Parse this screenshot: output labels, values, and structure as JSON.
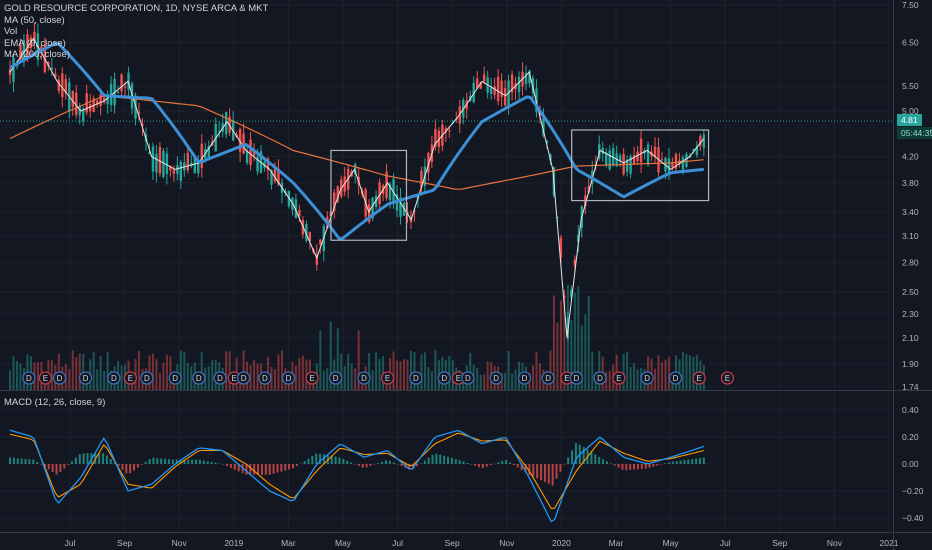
{
  "chart_data": [
    {
      "type": "candlestick",
      "title": "GOLD RESOURCE CORPORATION, 1D, NYSE ARCA & MKT",
      "indicators": [
        "MA (50, close)",
        "Vol",
        "EMA (9, close)",
        "MA (200, close)"
      ],
      "y_ticks": [
        "7.50",
        "6.50",
        "5.50",
        "5.00",
        "4.20",
        "3.80",
        "3.40",
        "3.10",
        "2.80",
        "2.50",
        "2.30",
        "2.10",
        "1.90",
        "1.74"
      ],
      "y_scale": "log",
      "ylim": [
        1.74,
        7.5
      ],
      "last_price": "4.81",
      "countdown": "05:44:35",
      "x_ticks": [
        "Jul",
        "Sep",
        "Nov",
        "2019",
        "Mar",
        "May",
        "Jul",
        "Sep",
        "Nov",
        "2020",
        "Mar",
        "May",
        "Jul",
        "Sep",
        "Nov",
        "2021"
      ],
      "price_path": [
        {
          "t": 0,
          "v": 5.8
        },
        {
          "t": 0.5,
          "v": 6.6
        },
        {
          "t": 1,
          "v": 5.6
        },
        {
          "t": 1.5,
          "v": 5.0
        },
        {
          "t": 2,
          "v": 5.2
        },
        {
          "t": 2.5,
          "v": 5.6
        },
        {
          "t": 3,
          "v": 4.2
        },
        {
          "t": 3.5,
          "v": 4.0
        },
        {
          "t": 4,
          "v": 4.1
        },
        {
          "t": 4.6,
          "v": 4.8
        },
        {
          "t": 5,
          "v": 4.3
        },
        {
          "t": 5.5,
          "v": 4.0
        },
        {
          "t": 6,
          "v": 3.5
        },
        {
          "t": 6.5,
          "v": 2.85
        },
        {
          "t": 7,
          "v": 3.7
        },
        {
          "t": 7.3,
          "v": 4.0
        },
        {
          "t": 7.6,
          "v": 3.4
        },
        {
          "t": 8,
          "v": 3.8
        },
        {
          "t": 8.5,
          "v": 3.3
        },
        {
          "t": 9,
          "v": 4.4
        },
        {
          "t": 9.5,
          "v": 4.9
        },
        {
          "t": 10,
          "v": 5.6
        },
        {
          "t": 10.5,
          "v": 5.3
        },
        {
          "t": 11,
          "v": 5.8
        },
        {
          "t": 11.5,
          "v": 4.0
        },
        {
          "t": 11.8,
          "v": 2.1
        },
        {
          "t": 12.1,
          "v": 3.3
        },
        {
          "t": 12.5,
          "v": 4.3
        },
        {
          "t": 13,
          "v": 4.1
        },
        {
          "t": 13.5,
          "v": 4.3
        },
        {
          "t": 14,
          "v": 4.0
        },
        {
          "t": 14.4,
          "v": 4.2
        },
        {
          "t": 14.7,
          "v": 4.5
        }
      ],
      "ma50_path": [
        {
          "t": 0,
          "v": 5.9
        },
        {
          "t": 1,
          "v": 6.5
        },
        {
          "t": 2,
          "v": 5.3
        },
        {
          "t": 3,
          "v": 5.25
        },
        {
          "t": 4,
          "v": 4.1
        },
        {
          "t": 5,
          "v": 4.4
        },
        {
          "t": 6,
          "v": 3.8
        },
        {
          "t": 7,
          "v": 3.05
        },
        {
          "t": 8,
          "v": 3.5
        },
        {
          "t": 9,
          "v": 3.7
        },
        {
          "t": 10,
          "v": 4.8
        },
        {
          "t": 11,
          "v": 5.3
        },
        {
          "t": 12,
          "v": 4.0
        },
        {
          "t": 13,
          "v": 3.6
        },
        {
          "t": 14,
          "v": 3.95
        },
        {
          "t": 14.7,
          "v": 4.0
        }
      ],
      "ma200_path": [
        {
          "t": 0,
          "v": 4.5
        },
        {
          "t": 2,
          "v": 5.3
        },
        {
          "t": 4,
          "v": 5.1
        },
        {
          "t": 6,
          "v": 4.3
        },
        {
          "t": 8,
          "v": 3.9
        },
        {
          "t": 9.5,
          "v": 3.7
        },
        {
          "t": 11,
          "v": 3.9
        },
        {
          "t": 12,
          "v": 4.05
        },
        {
          "t": 14,
          "v": 4.1
        },
        {
          "t": 14.7,
          "v": 4.15
        }
      ],
      "event_markers": [
        {
          "t": 0.4,
          "label": "D"
        },
        {
          "t": 0.75,
          "label": "E"
        },
        {
          "t": 1.05,
          "label": "D"
        },
        {
          "t": 1.6,
          "label": "D"
        },
        {
          "t": 2.2,
          "label": "D"
        },
        {
          "t": 2.55,
          "label": "E"
        },
        {
          "t": 2.9,
          "label": "D"
        },
        {
          "t": 3.5,
          "label": "D"
        },
        {
          "t": 4.0,
          "label": "D"
        },
        {
          "t": 4.45,
          "label": "D"
        },
        {
          "t": 4.75,
          "label": "E"
        },
        {
          "t": 4.95,
          "label": "D"
        },
        {
          "t": 5.4,
          "label": "D"
        },
        {
          "t": 5.9,
          "label": "D"
        },
        {
          "t": 6.4,
          "label": "E"
        },
        {
          "t": 6.9,
          "label": "D"
        },
        {
          "t": 7.5,
          "label": "D"
        },
        {
          "t": 8.0,
          "label": "E"
        },
        {
          "t": 8.6,
          "label": "D"
        },
        {
          "t": 9.2,
          "label": "D"
        },
        {
          "t": 9.5,
          "label": "E"
        },
        {
          "t": 9.7,
          "label": "D"
        },
        {
          "t": 10.3,
          "label": "D"
        },
        {
          "t": 10.9,
          "label": "D"
        },
        {
          "t": 11.4,
          "label": "D"
        },
        {
          "t": 11.8,
          "label": "E"
        },
        {
          "t": 12.0,
          "label": "D"
        },
        {
          "t": 12.5,
          "label": "D"
        },
        {
          "t": 12.9,
          "label": "E"
        },
        {
          "t": 13.5,
          "label": "D"
        },
        {
          "t": 14.1,
          "label": "D"
        },
        {
          "t": 14.6,
          "label": "E"
        },
        {
          "t": 15.2,
          "label": "E"
        }
      ]
    },
    {
      "type": "line",
      "title": "MACD (12, 26, close, 9)",
      "y_ticks": [
        "0.40",
        "0.20",
        "0.00",
        "−0.20",
        "−0.40"
      ],
      "ylim": [
        -0.45,
        0.45
      ],
      "series": [
        {
          "role": "macd",
          "color": "#2196f3",
          "points": [
            {
              "t": 0,
              "v": 0.25
            },
            {
              "t": 0.5,
              "v": 0.2
            },
            {
              "t": 1,
              "v": -0.3
            },
            {
              "t": 1.5,
              "v": -0.1
            },
            {
              "t": 2,
              "v": 0.2
            },
            {
              "t": 2.5,
              "v": -0.2
            },
            {
              "t": 3,
              "v": -0.15
            },
            {
              "t": 3.5,
              "v": 0.0
            },
            {
              "t": 4,
              "v": 0.12
            },
            {
              "t": 4.5,
              "v": 0.1
            },
            {
              "t": 5,
              "v": -0.05
            },
            {
              "t": 5.5,
              "v": -0.2
            },
            {
              "t": 6,
              "v": -0.28
            },
            {
              "t": 6.5,
              "v": 0.0
            },
            {
              "t": 7,
              "v": 0.15
            },
            {
              "t": 7.5,
              "v": 0.05
            },
            {
              "t": 8,
              "v": 0.1
            },
            {
              "t": 8.5,
              "v": -0.05
            },
            {
              "t": 9,
              "v": 0.2
            },
            {
              "t": 9.5,
              "v": 0.25
            },
            {
              "t": 10,
              "v": 0.15
            },
            {
              "t": 10.5,
              "v": 0.2
            },
            {
              "t": 11,
              "v": -0.1
            },
            {
              "t": 11.5,
              "v": -0.45
            },
            {
              "t": 12,
              "v": 0.05
            },
            {
              "t": 12.5,
              "v": 0.2
            },
            {
              "t": 13,
              "v": 0.05
            },
            {
              "t": 13.5,
              "v": 0.0
            },
            {
              "t": 14,
              "v": 0.05
            },
            {
              "t": 14.7,
              "v": 0.13
            }
          ]
        },
        {
          "role": "signal",
          "color": "#ff9800",
          "points": [
            {
              "t": 0,
              "v": 0.22
            },
            {
              "t": 0.5,
              "v": 0.18
            },
            {
              "t": 1,
              "v": -0.25
            },
            {
              "t": 1.5,
              "v": -0.15
            },
            {
              "t": 2,
              "v": 0.15
            },
            {
              "t": 2.5,
              "v": -0.15
            },
            {
              "t": 3,
              "v": -0.18
            },
            {
              "t": 3.5,
              "v": -0.02
            },
            {
              "t": 4,
              "v": 0.1
            },
            {
              "t": 4.5,
              "v": 0.1
            },
            {
              "t": 5,
              "v": 0.0
            },
            {
              "t": 5.5,
              "v": -0.15
            },
            {
              "t": 6,
              "v": -0.26
            },
            {
              "t": 6.5,
              "v": -0.05
            },
            {
              "t": 7,
              "v": 0.12
            },
            {
              "t": 7.5,
              "v": 0.07
            },
            {
              "t": 8,
              "v": 0.08
            },
            {
              "t": 8.5,
              "v": -0.02
            },
            {
              "t": 9,
              "v": 0.15
            },
            {
              "t": 9.5,
              "v": 0.23
            },
            {
              "t": 10,
              "v": 0.17
            },
            {
              "t": 10.5,
              "v": 0.18
            },
            {
              "t": 11,
              "v": -0.05
            },
            {
              "t": 11.5,
              "v": -0.35
            },
            {
              "t": 12,
              "v": -0.05
            },
            {
              "t": 12.5,
              "v": 0.17
            },
            {
              "t": 13,
              "v": 0.08
            },
            {
              "t": 13.5,
              "v": 0.02
            },
            {
              "t": 14,
              "v": 0.04
            },
            {
              "t": 14.7,
              "v": 0.1
            }
          ]
        }
      ]
    }
  ],
  "annotations": {
    "box_1": {
      "t0": 6.8,
      "t1": 8.4,
      "v_top": 4.3,
      "v_bottom": 3.05
    },
    "box_2": {
      "t0": 11.9,
      "t1": 14.8,
      "v_top": 4.65,
      "v_bottom": 3.55
    }
  },
  "colors": {
    "background": "#131722",
    "bull": "#26a69a",
    "bear": "#ef5350",
    "ma50": "#3d8fd6",
    "ema9": "#e6e6e6",
    "ma200": "#e8743b",
    "grid": "#1e222d",
    "box": "#b2b5be"
  }
}
